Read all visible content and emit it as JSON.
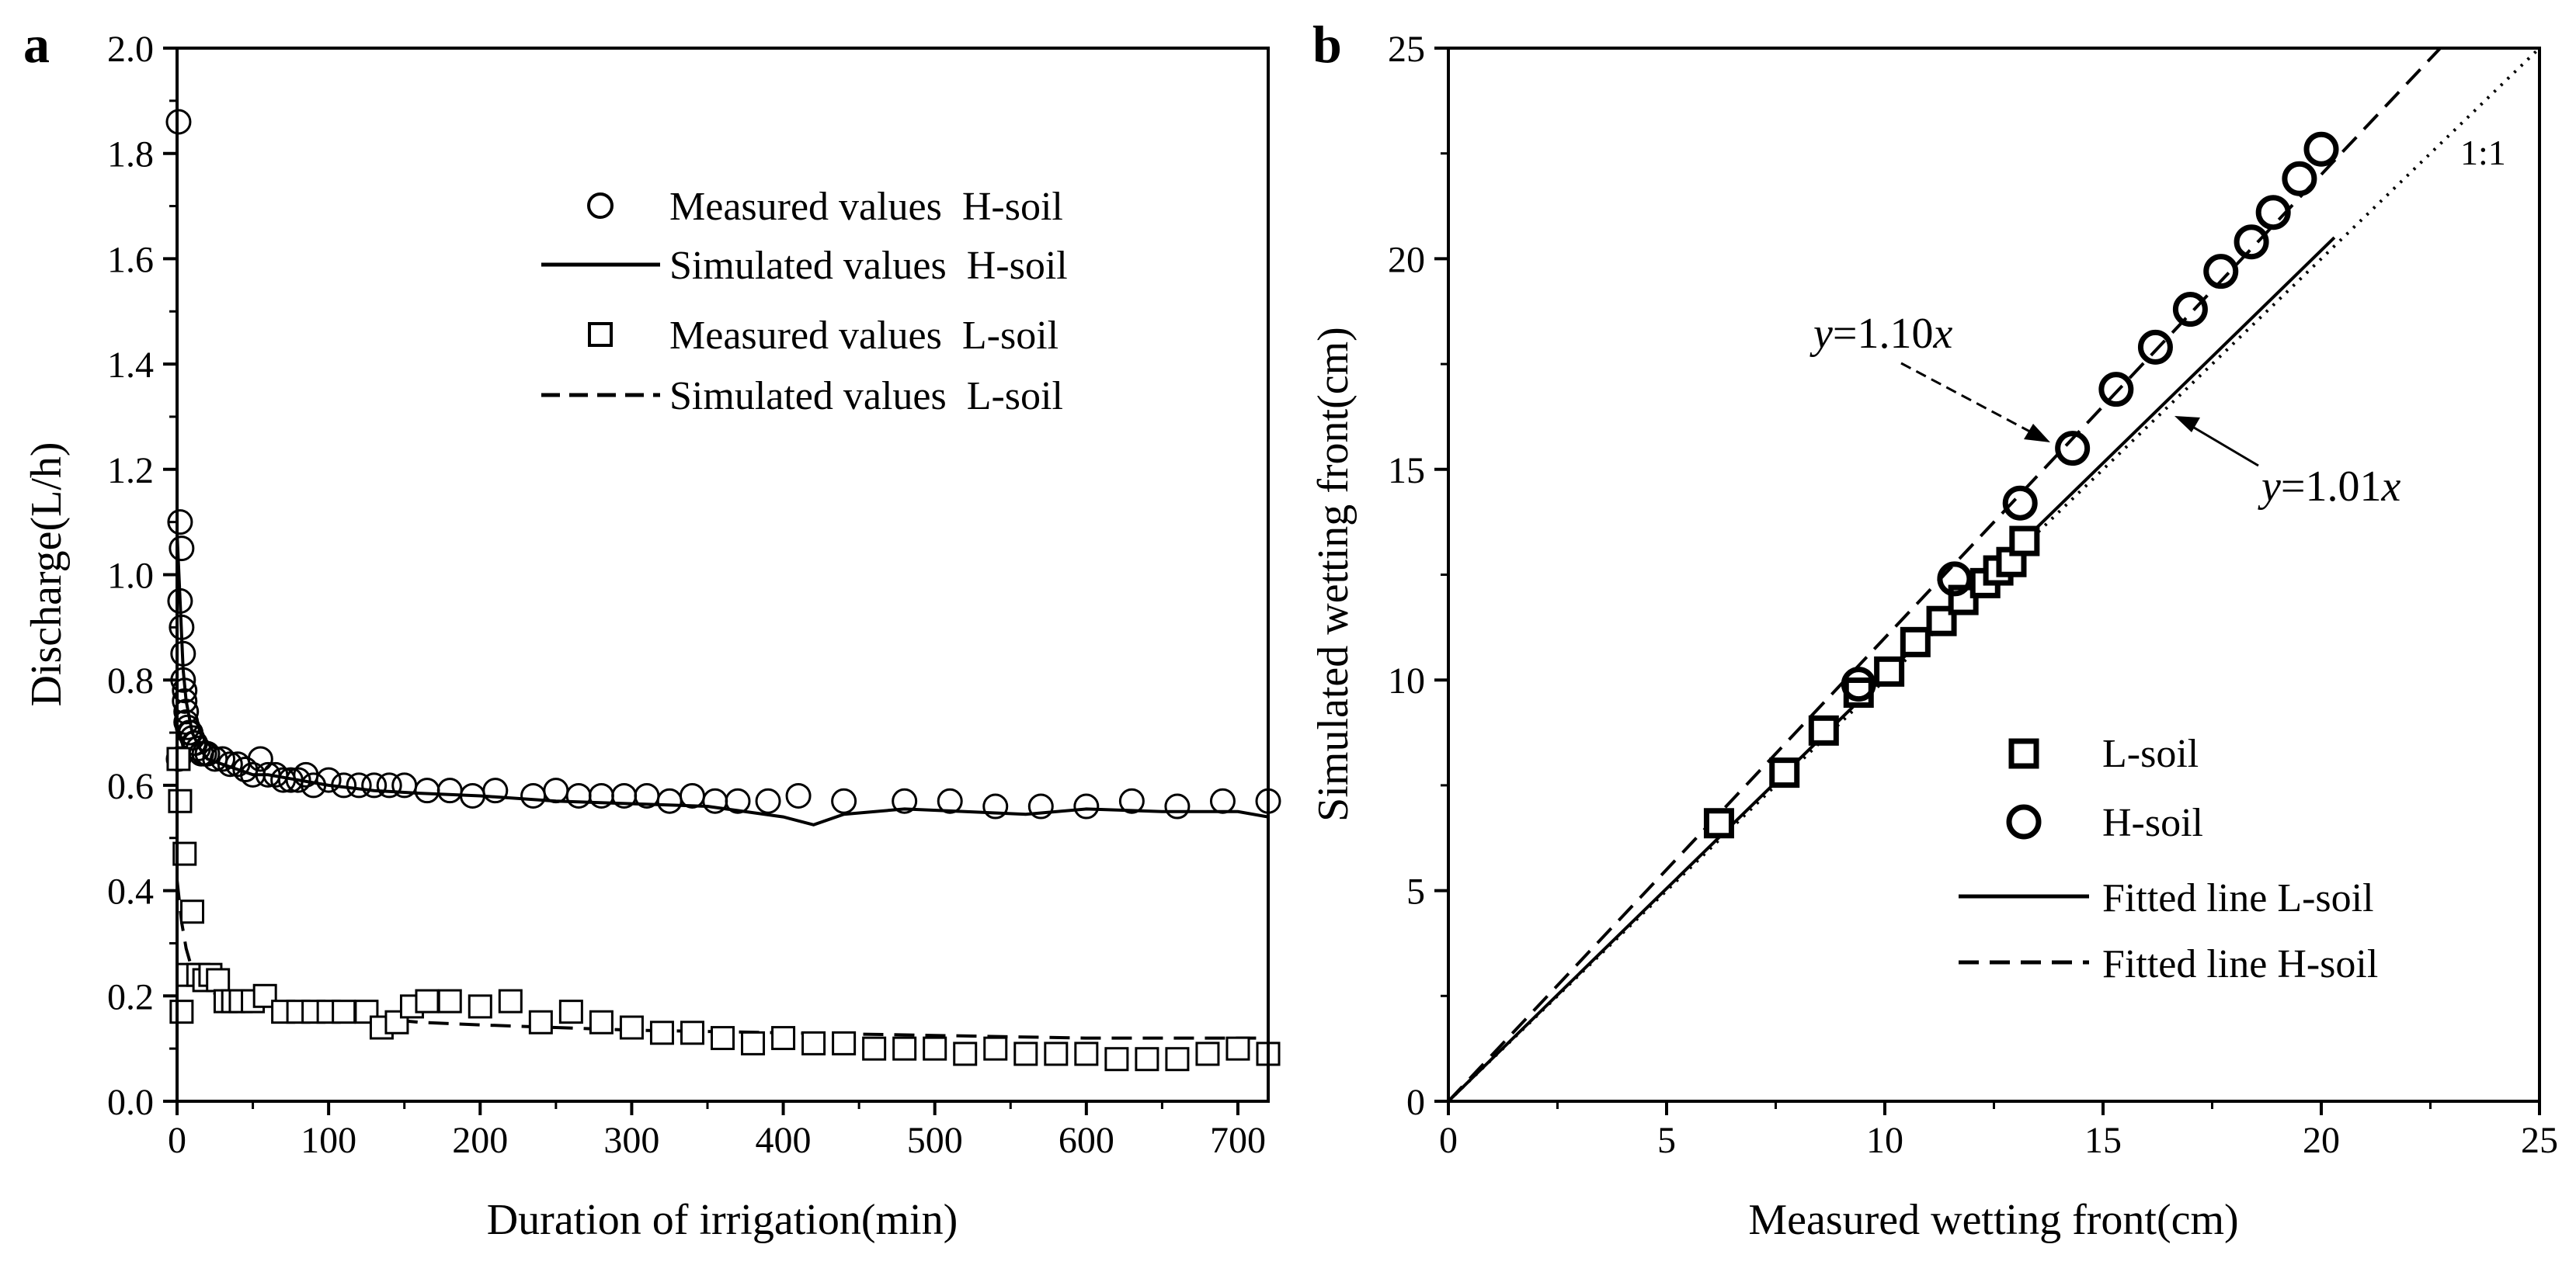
{
  "chart_data": [
    {
      "panel": "a",
      "type": "scatter",
      "xlabel": "Duration of irrigation(min)",
      "ylabel": "Discharge(L/h)",
      "xlim": [
        0,
        720
      ],
      "ylim": [
        0,
        2.0
      ],
      "xticks": [
        0,
        100,
        200,
        300,
        400,
        500,
        600,
        700
      ],
      "yticks": [
        0.0,
        0.2,
        0.4,
        0.6,
        0.8,
        1.0,
        1.2,
        1.4,
        1.6,
        1.8,
        2.0
      ],
      "ytick_labels": [
        "0.0",
        "0.2",
        "0.4",
        "0.6",
        "0.8",
        "1.0",
        "1.2",
        "1.4",
        "1.6",
        "1.8",
        "2.0"
      ],
      "legend_position": "top-right",
      "series": [
        {
          "name": "Measured values  H-soil",
          "style": "open-circle",
          "x": [
            1,
            1,
            2,
            2,
            3,
            3,
            4,
            4,
            5,
            5,
            6,
            6,
            7,
            8,
            9,
            10,
            11,
            12,
            14,
            16,
            18,
            20,
            25,
            30,
            35,
            40,
            45,
            50,
            55,
            60,
            65,
            70,
            75,
            80,
            85,
            90,
            100,
            110,
            120,
            130,
            140,
            150,
            165,
            180,
            195,
            210,
            235,
            250,
            265,
            280,
            295,
            310,
            325,
            340,
            355,
            370,
            390,
            410,
            440,
            480,
            510,
            540,
            570,
            600,
            630,
            660,
            690,
            720
          ],
          "y": [
            1.86,
            0.65,
            1.1,
            0.95,
            1.05,
            0.9,
            0.85,
            0.8,
            0.78,
            0.76,
            0.74,
            0.72,
            0.71,
            0.7,
            0.7,
            0.69,
            0.68,
            0.68,
            0.67,
            0.66,
            0.66,
            0.66,
            0.65,
            0.65,
            0.64,
            0.64,
            0.63,
            0.62,
            0.65,
            0.62,
            0.62,
            0.61,
            0.61,
            0.61,
            0.62,
            0.6,
            0.61,
            0.6,
            0.6,
            0.6,
            0.6,
            0.6,
            0.59,
            0.59,
            0.58,
            0.59,
            0.58,
            0.59,
            0.58,
            0.58,
            0.58,
            0.58,
            0.57,
            0.58,
            0.57,
            0.57,
            0.57,
            0.58,
            0.57,
            0.57,
            0.57,
            0.56,
            0.56,
            0.56,
            0.57,
            0.56,
            0.57,
            0.57
          ]
        },
        {
          "name": "Simulated values  H-soil",
          "style": "solid",
          "x": [
            0,
            2,
            4,
            6,
            8,
            10,
            15,
            20,
            30,
            40,
            50,
            60,
            80,
            100,
            130,
            160,
            200,
            250,
            300,
            350,
            400,
            420,
            440,
            480,
            520,
            560,
            600,
            650,
            700,
            720
          ],
          "y": [
            1.08,
            0.95,
            0.82,
            0.76,
            0.73,
            0.7,
            0.67,
            0.65,
            0.64,
            0.63,
            0.62,
            0.62,
            0.61,
            0.6,
            0.59,
            0.585,
            0.58,
            0.57,
            0.565,
            0.56,
            0.54,
            0.525,
            0.545,
            0.555,
            0.55,
            0.545,
            0.555,
            0.55,
            0.55,
            0.54
          ]
        },
        {
          "name": "Measured values  L-soil",
          "style": "open-square",
          "x": [
            1,
            2,
            3,
            5,
            7,
            10,
            14,
            18,
            22,
            27,
            32,
            37,
            42,
            50,
            58,
            70,
            80,
            90,
            100,
            110,
            125,
            135,
            145,
            155,
            165,
            180,
            200,
            220,
            240,
            260,
            280,
            300,
            320,
            340,
            360,
            380,
            400,
            420,
            440,
            460,
            480,
            500,
            520,
            540,
            560,
            580,
            600,
            620,
            640,
            660,
            680,
            700,
            720
          ],
          "y": [
            0.65,
            0.57,
            0.17,
            0.47,
            0.24,
            0.36,
            0.24,
            0.23,
            0.24,
            0.23,
            0.19,
            0.19,
            0.19,
            0.19,
            0.2,
            0.17,
            0.17,
            0.17,
            0.17,
            0.17,
            0.17,
            0.14,
            0.15,
            0.18,
            0.19,
            0.19,
            0.18,
            0.19,
            0.15,
            0.17,
            0.15,
            0.14,
            0.13,
            0.13,
            0.12,
            0.11,
            0.12,
            0.11,
            0.11,
            0.1,
            0.1,
            0.1,
            0.09,
            0.1,
            0.09,
            0.09,
            0.09,
            0.08,
            0.08,
            0.08,
            0.09,
            0.1,
            0.09
          ]
        },
        {
          "name": "Simulated values  L-soil",
          "style": "dashed",
          "x": [
            0,
            3,
            6,
            10,
            15,
            20,
            30,
            50,
            80,
            120,
            160,
            200,
            250,
            300,
            400,
            500,
            600,
            720
          ],
          "y": [
            0.42,
            0.34,
            0.29,
            0.25,
            0.22,
            0.21,
            0.2,
            0.19,
            0.18,
            0.16,
            0.15,
            0.145,
            0.14,
            0.135,
            0.13,
            0.125,
            0.12,
            0.12
          ]
        }
      ]
    },
    {
      "panel": "b",
      "type": "scatter",
      "xlabel": "Measured wetting front(cm)",
      "ylabel": "Simulated wetting front(cm)",
      "xlim": [
        0,
        25
      ],
      "ylim": [
        0,
        25
      ],
      "xticks": [
        0,
        5,
        10,
        15,
        20,
        25
      ],
      "yticks": [
        0,
        5,
        10,
        15,
        20,
        25
      ],
      "legend_position": "bottom-right",
      "series": [
        {
          "name": "L-soil",
          "style": "open-square",
          "x": [
            6.2,
            7.7,
            8.6,
            9.4,
            10.1,
            10.7,
            11.3,
            11.8,
            12.3,
            12.6,
            12.9,
            13.2
          ],
          "y": [
            6.6,
            7.8,
            8.8,
            9.7,
            10.2,
            10.9,
            11.4,
            11.9,
            12.3,
            12.6,
            12.8,
            13.3
          ]
        },
        {
          "name": "H-soil",
          "style": "open-circle",
          "x": [
            9.4,
            11.6,
            13.1,
            14.3,
            15.3,
            16.2,
            17.0,
            17.7,
            18.4,
            18.9,
            19.5,
            20.0
          ],
          "y": [
            9.9,
            12.4,
            14.2,
            15.5,
            16.9,
            17.9,
            18.8,
            19.7,
            20.4,
            21.1,
            21.9,
            22.6
          ]
        },
        {
          "name": "Fitted line L-soil",
          "style": "solid",
          "slope": 1.01,
          "x": [
            0,
            20.3
          ]
        },
        {
          "name": "Fitted line H-soil",
          "style": "dashed",
          "slope": 1.1,
          "x": [
            0,
            22.9
          ]
        },
        {
          "name": "1:1",
          "style": "dotted",
          "slope": 1.0,
          "x": [
            0,
            25
          ]
        }
      ],
      "annotations": {
        "one_to_one": "1:1",
        "eq_h_var_left": "y",
        "eq_h_rest": "=1.10",
        "eq_h_var_right": "x",
        "eq_l_var_left": "y",
        "eq_l_rest": "=1.01",
        "eq_l_var_right": "x"
      }
    }
  ],
  "panels": {
    "a_letter": "a",
    "b_letter": "b"
  }
}
